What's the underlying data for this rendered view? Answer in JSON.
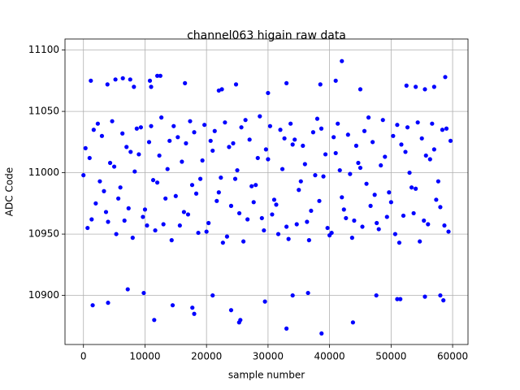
{
  "chart_data": {
    "type": "scatter",
    "title": "channel063 higain raw data",
    "xlabel": "sample number",
    "ylabel": "ADC Code",
    "color": "#0000ff",
    "grid": true,
    "xlim": [
      -3000,
      62500
    ],
    "ylim": [
      10860,
      11109
    ],
    "xticks": [
      0,
      10000,
      20000,
      30000,
      40000,
      50000,
      60000
    ],
    "yticks": [
      10900,
      10950,
      11000,
      11050,
      11100
    ],
    "x": [
      0,
      1000,
      2000,
      3000,
      4000,
      5000,
      6000,
      7000,
      8000,
      9000,
      10000,
      11000,
      12000,
      13000,
      14000,
      15000,
      16000,
      17000,
      18000,
      19000,
      20000,
      21000,
      22000,
      23000,
      24000,
      25000,
      26000,
      27000,
      28000,
      29000,
      30000,
      31000,
      32000,
      33000,
      34000,
      35000,
      36000,
      37000,
      38000,
      39000,
      40000,
      41000,
      42000,
      43000,
      44000,
      45000,
      46000,
      47000,
      48000,
      49000,
      50000,
      51000,
      52000,
      53000,
      54000,
      55000,
      56000,
      57000,
      58000,
      59000,
      333,
      1333,
      2333,
      3333,
      4333,
      5333,
      6333,
      7333,
      8333,
      9333,
      10333,
      11333,
      12333,
      13333,
      14333,
      15333,
      16333,
      17333,
      18333,
      19333,
      20333,
      21333,
      22333,
      23333,
      24333,
      25333,
      26333,
      27333,
      28333,
      29333,
      30333,
      31333,
      32333,
      33333,
      34333,
      35333,
      36333,
      37333,
      38333,
      39333,
      40333,
      41333,
      42333,
      43333,
      44333,
      45333,
      46333,
      47333,
      48333,
      49333,
      50333,
      51333,
      52333,
      53333,
      54333,
      55333,
      56333,
      57333,
      58333,
      59333,
      666,
      1666,
      2666,
      3666,
      4666,
      5666,
      6666,
      7666,
      8666,
      9666,
      10666,
      11666,
      12666,
      13666,
      14666,
      15666,
      16666,
      17666,
      18666,
      19666,
      20666,
      21666,
      22666,
      23666,
      24666,
      25666,
      26666,
      27666,
      28666,
      29666,
      30666,
      31666,
      32666,
      33666,
      34666,
      35666,
      36666,
      37666,
      38666,
      39666,
      40666,
      41666,
      42666,
      43666,
      44666,
      45666,
      46666,
      47666,
      48666,
      49666,
      50666,
      51666,
      52666,
      53666,
      54666,
      55666,
      56666,
      57666,
      58666,
      59666,
      42000,
      58800,
      12000,
      12500,
      5200,
      6400,
      7600,
      1200,
      3900,
      8200,
      10800,
      11000,
      16500,
      22000,
      22500,
      24800,
      30000,
      33000,
      38500,
      41000,
      45000,
      52500,
      54000,
      55500,
      57000,
      1500,
      4000,
      11500,
      18000,
      17700,
      25500,
      25300,
      21000,
      29500,
      33000,
      34000,
      36500,
      38700,
      43800,
      47600,
      51000,
      51500,
      55500,
      58500,
      58000,
      24000,
      14500,
      7200,
      9800
    ],
    "y": [
      10998,
      11012,
      10975,
      11030,
      10960,
      11005,
      10988,
      11021,
      10947,
      11015,
      10970,
      11038,
      10992,
      10958,
      11026,
      10981,
      11009,
      10966,
      11033,
      10995,
      10952,
      11018,
      10984,
      11041,
      10973,
      11002,
      10944,
      11027,
      10990,
      10963,
      11011,
      10978,
      11035,
      10956,
      11023,
      10986,
      11007,
      10969,
      11044,
      10997,
      10949,
      11016,
      10980,
      11031,
      10961,
      11004,
      10991,
      11025,
      10954,
      11013,
      10976,
      11039,
      10965,
      11000,
      10987,
      11028,
      10958,
      11019,
      10972,
      11036,
      11020,
      10962,
      11040,
      10985,
      11008,
      10950,
      11032,
      10971,
      11001,
      11037,
      10957,
      10994,
      11014,
      10979,
      10945,
      11029,
      10968,
      11042,
      10983,
      11010,
      10959,
      11034,
      10996,
      10948,
      11024,
      10967,
      11043,
      10989,
      11012,
      10953,
      11038,
      10974,
      11003,
      10946,
      11027,
      10993,
      10960,
      11033,
      10977,
      11015,
      10951,
      11040,
      10970,
      10999,
      11022,
      10956,
      11045,
      10982,
      11006,
      10964,
      11030,
      10943,
      11017,
      10988,
      11041,
      10961,
      11011,
      10978,
      11035,
      10952,
      10955,
      11035,
      10993,
      10968,
      11042,
      10979,
      10961,
      11017,
      11036,
      10964,
      11025,
      10953,
      11045,
      11003,
      11038,
      10957,
      11024,
      10990,
      10951,
      11039,
      11026,
      10977,
      10943,
      11021,
      10995,
      11037,
      10962,
      10976,
      11046,
      11019,
      10966,
      10950,
      11028,
      11040,
      10958,
      11022,
      10945,
      10998,
      11036,
      10955,
      11029,
      11002,
      10963,
      10947,
      11008,
      11034,
      10973,
      10959,
      11043,
      10984,
      10950,
      11023,
      11037,
      10967,
      10944,
      11014,
      11040,
      10993,
      10957,
      11026,
      11091,
      11078,
      11079,
      11079,
      11076,
      11077,
      11076,
      11075,
      11072,
      11070,
      11075,
      11070,
      11073,
      11067,
      11068,
      11072,
      11065,
      11073,
      11072,
      11075,
      11068,
      11071,
      11070,
      11068,
      11070,
      10892,
      10894,
      10880,
      10885,
      10890,
      10880,
      10878,
      10900,
      10895,
      10873,
      10900,
      10902,
      10869,
      10878,
      10900,
      10897,
      10897,
      10899,
      10896,
      10900,
      10888,
      10892,
      10905,
      10902
    ]
  }
}
